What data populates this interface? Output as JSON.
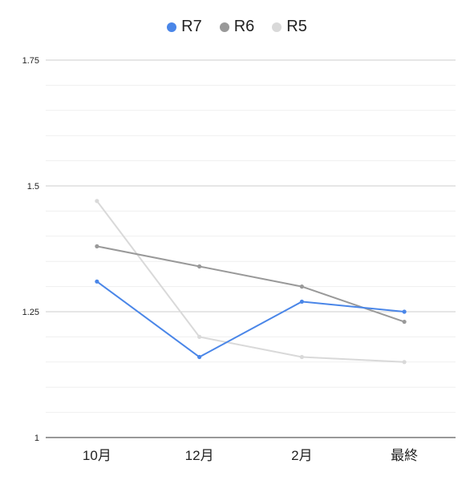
{
  "chart_data": {
    "type": "line",
    "categories": [
      "10月",
      "12月",
      "2月",
      "最終"
    ],
    "series": [
      {
        "name": "R7",
        "color": "#4a86e8",
        "values": [
          1.31,
          1.16,
          1.27,
          1.25
        ]
      },
      {
        "name": "R6",
        "color": "#999999",
        "values": [
          1.38,
          1.34,
          1.3,
          1.23
        ]
      },
      {
        "name": "R5",
        "color": "#d9d9d9",
        "values": [
          1.47,
          1.2,
          1.16,
          1.15
        ]
      }
    ],
    "ylim": [
      1,
      1.75
    ],
    "yticks": [
      {
        "value": 1,
        "label": "1"
      },
      {
        "value": 1.25,
        "label": "1.25"
      },
      {
        "value": 1.5,
        "label": "1.5"
      },
      {
        "value": 1.75,
        "label": "1.75"
      }
    ],
    "minor_grid_step": 0.05,
    "grid": true,
    "legend_position": "top-center"
  }
}
